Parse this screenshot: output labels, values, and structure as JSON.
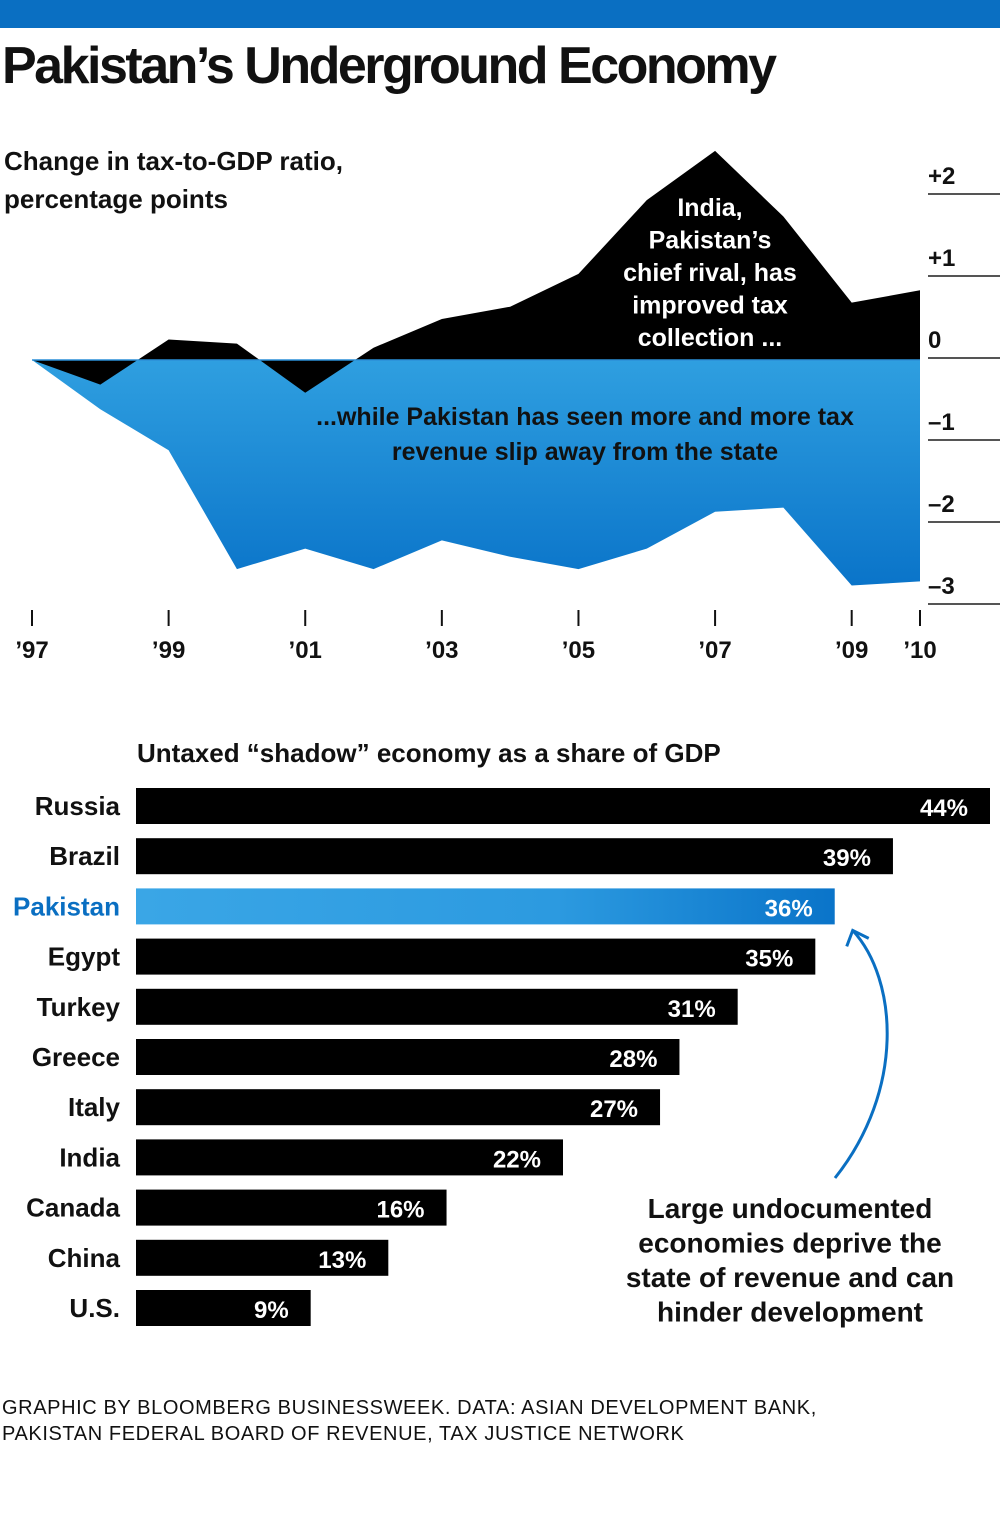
{
  "title": "Pakistan’s Underground Economy",
  "colors": {
    "accent": "#0a6fc2",
    "india_area": "#000000",
    "pakistan_area_top": "#2f9fe0",
    "pakistan_area_bottom": "#0a74c9",
    "highlight_text": "#0a6fc2",
    "bar_default": "#000000"
  },
  "chart_data": [
    {
      "type": "area",
      "title": "Change in tax-to-GDP ratio, percentage points",
      "title_lines": [
        "Change in tax-to-GDP ratio,",
        "percentage points"
      ],
      "x": [
        1997,
        1998,
        1999,
        2000,
        2001,
        2002,
        2003,
        2004,
        2005,
        2006,
        2007,
        2008,
        2009,
        2010
      ],
      "x_tick_values": [
        1997,
        1999,
        2001,
        2003,
        2005,
        2007,
        2009,
        2010
      ],
      "x_tick_labels": [
        "’97",
        "’99",
        "’01",
        "’03",
        "’05",
        "’07",
        "’09",
        "’10"
      ],
      "y_tick_values": [
        2,
        1,
        0,
        -1,
        -2,
        -3
      ],
      "y_tick_labels": [
        "+2",
        "+1",
        "0",
        "–1",
        "–2",
        "–3"
      ],
      "ylim": [
        -3,
        2.6
      ],
      "xlim": [
        1997,
        2010
      ],
      "series": [
        {
          "name": "India",
          "values": [
            0,
            -0.3,
            0.25,
            0.2,
            -0.4,
            0.15,
            0.5,
            0.65,
            1.05,
            1.95,
            2.55,
            1.75,
            0.7,
            0.85
          ]
        },
        {
          "name": "Pakistan",
          "values": [
            0,
            -0.6,
            -1.1,
            -2.55,
            -2.3,
            -2.55,
            -2.2,
            -2.4,
            -2.55,
            -2.3,
            -1.85,
            -1.8,
            -2.75,
            -2.7
          ]
        }
      ],
      "annotations": [
        {
          "lines": [
            "India,",
            "Pakistan’s",
            "chief rival, has",
            "improved tax",
            "collection ..."
          ]
        },
        {
          "lines": [
            "...while Pakistan has seen more and more tax",
            "revenue slip away from the state"
          ]
        }
      ]
    },
    {
      "type": "bar",
      "title": "Untaxed “shadow” economy as a share of GDP",
      "categories": [
        "Russia",
        "Brazil",
        "Pakistan",
        "Egypt",
        "Turkey",
        "Greece",
        "Italy",
        "India",
        "Canada",
        "China",
        "U.S."
      ],
      "values": [
        44,
        39,
        36,
        35,
        31,
        28,
        27,
        22,
        16,
        13,
        9
      ],
      "value_labels": [
        "44%",
        "39%",
        "36%",
        "35%",
        "31%",
        "28%",
        "27%",
        "22%",
        "16%",
        "13%",
        "9%"
      ],
      "highlight": "Pakistan",
      "xlim": [
        0,
        44
      ],
      "annotation_lines": [
        "Large undocumented",
        "economies deprive the",
        "state of revenue and can",
        "hinder development"
      ]
    }
  ],
  "source_lines": [
    "GRAPHIC BY BLOOMBERG BUSINESSWEEK. DATA: ASIAN DEVELOPMENT BANK,",
    "PAKISTAN FEDERAL BOARD OF REVENUE, TAX JUSTICE NETWORK"
  ]
}
